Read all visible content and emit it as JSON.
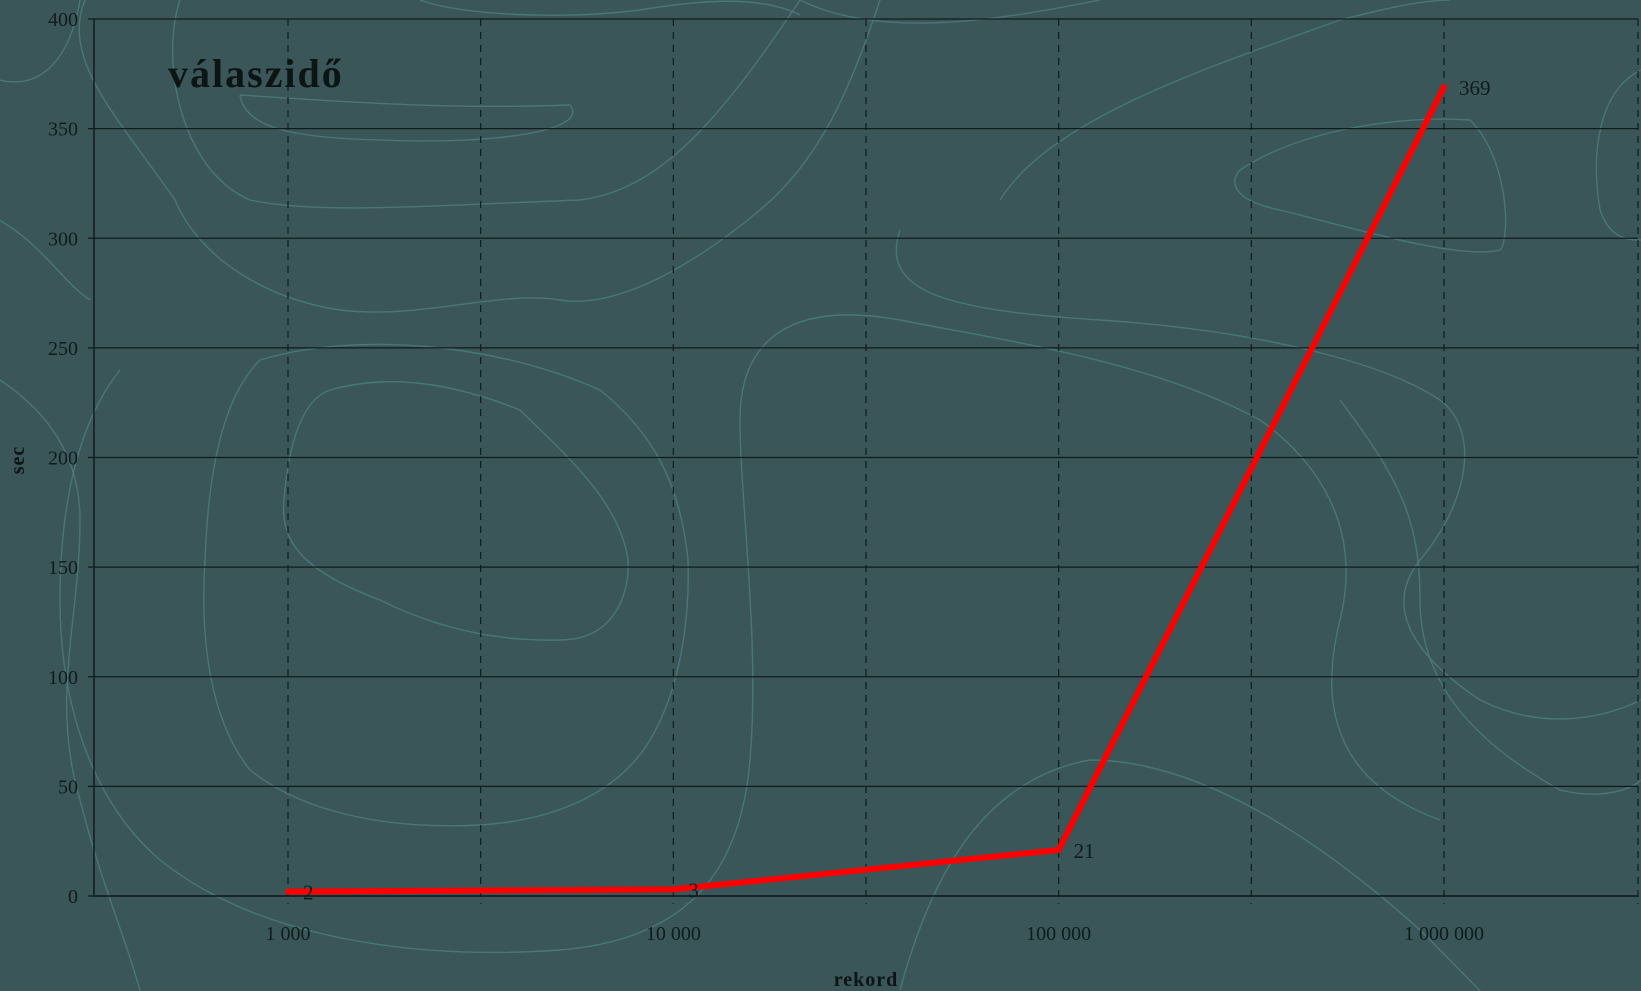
{
  "colors": {
    "background": "#3a5658",
    "contour": "#4c7a7b",
    "grid": "#101c1c",
    "series_line": "#ff0000",
    "text": "#101c1c"
  },
  "chart_data": {
    "type": "line",
    "title": "válaszidő",
    "xlabel": "rekord",
    "ylabel": "sec",
    "x_scale": "log",
    "categories": [
      "1 000",
      "10 000",
      "100 000",
      "1 000 000"
    ],
    "x": [
      1000,
      10000,
      100000,
      1000000
    ],
    "series": [
      {
        "values": [
          2,
          3,
          21,
          369
        ],
        "data_labels": [
          "2",
          "3",
          "21",
          "369"
        ]
      }
    ],
    "ylim": [
      0,
      400
    ],
    "yticks": [
      0,
      50,
      100,
      150,
      200,
      250,
      300,
      350,
      400
    ],
    "ytick_labels": [
      "0",
      "50",
      "100",
      "150",
      "200",
      "250",
      "300",
      "350",
      "400"
    ],
    "grid": {
      "horizontal": "solid",
      "vertical": "dashed"
    },
    "legend": "none"
  }
}
